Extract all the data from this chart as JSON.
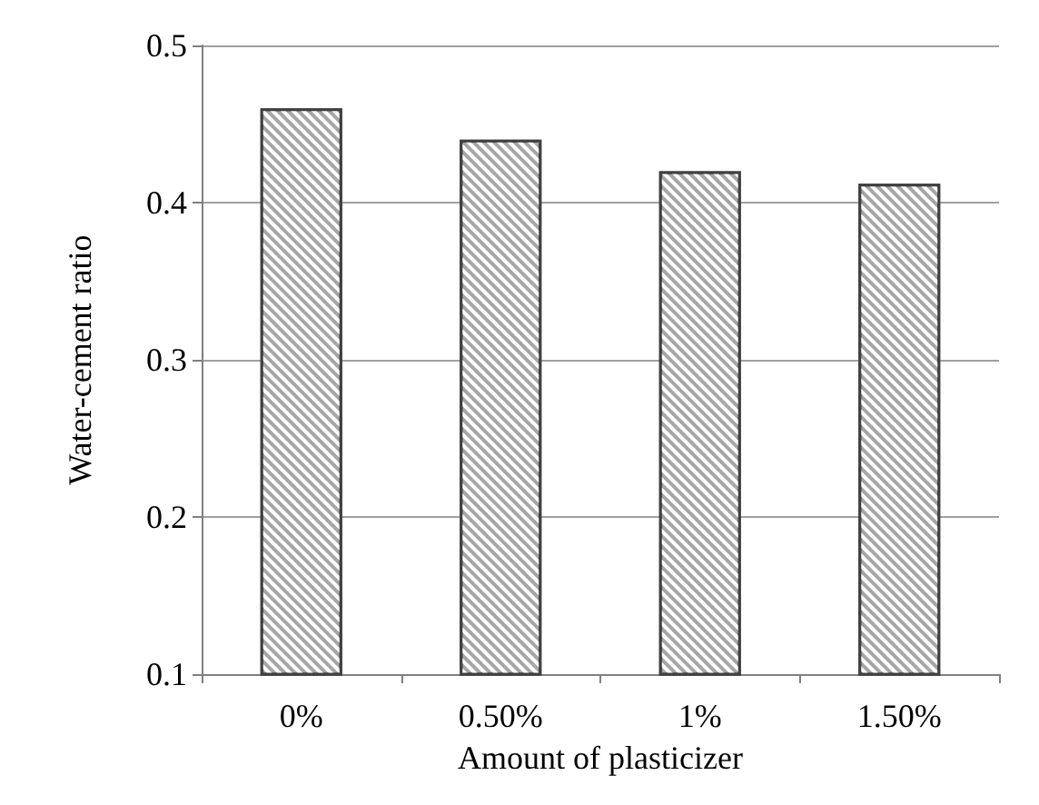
{
  "chart_data": {
    "type": "bar",
    "xlabel": "Amount of plasticizer",
    "ylabel": "Water-cement ratio",
    "categories": [
      "0%",
      "0.50%",
      "1%",
      "1.50%"
    ],
    "values": [
      0.46,
      0.44,
      0.42,
      0.412
    ],
    "color": "#a6a6a6",
    "ylim": [
      0.1,
      0.5
    ],
    "yticks": [
      0.1,
      0.2,
      0.3,
      0.4,
      0.5
    ],
    "grid": "y"
  }
}
